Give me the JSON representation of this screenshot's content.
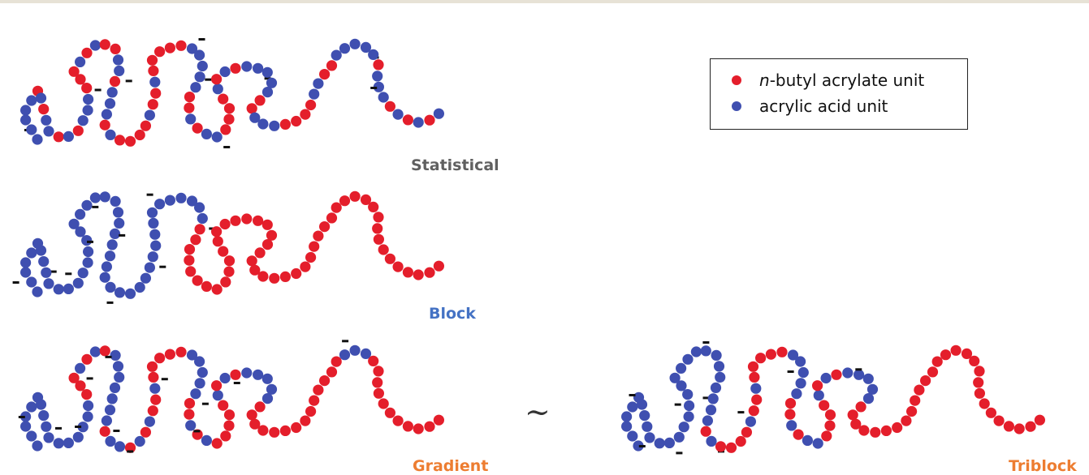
{
  "colors": {
    "acrylate": "#e41e2b",
    "acid": "#3f4fb0",
    "charge": "#111111",
    "statistical_label": "#606060",
    "block_label": "#4472c4",
    "gradient_label": "#ed7d31",
    "triblock_label": "#ed7d31"
  },
  "legend": {
    "items": [
      {
        "prefix": "n",
        "text": "-butyl acrylate unit",
        "color_key": "acrylate"
      },
      {
        "prefix": "",
        "text": " acrylic acid unit",
        "color_key": "acid"
      }
    ]
  },
  "labels": {
    "statistical": "Statistical",
    "block": "Block",
    "gradient": "Gradient",
    "triblock": "Triblock",
    "equivalence": "~"
  },
  "chains": [
    {
      "name": "statistical",
      "pattern": "random-mixed"
    },
    {
      "name": "block",
      "pattern": "acid-block-then-acrylate-block"
    },
    {
      "name": "gradient",
      "pattern": "acid-rich-to-acrylate-rich"
    },
    {
      "name": "triblock",
      "pattern": "acid-block-mixed-middle-acrylate-block"
    }
  ]
}
